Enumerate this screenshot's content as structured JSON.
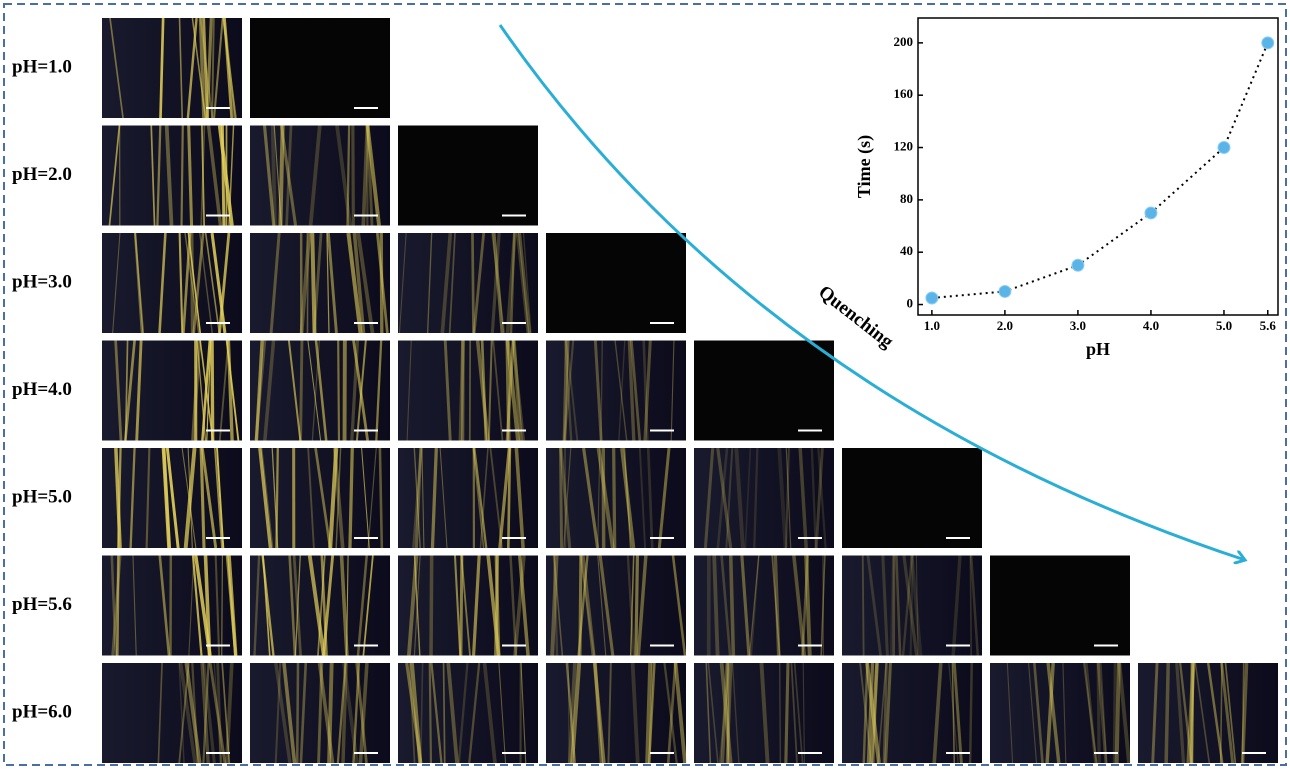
{
  "row_labels": [
    "pH=1.0",
    "pH=2.0",
    "pH=3.0",
    "pH=4.0",
    "pH=5.0",
    "pH=5.6",
    "pH=6.0"
  ],
  "annotation": "Quenching",
  "chart_data": {
    "type": "scatter",
    "xlabel": "pH",
    "ylabel": "Time (s)",
    "x": [
      1.0,
      2.0,
      3.0,
      4.0,
      5.0,
      5.6
    ],
    "values": [
      5,
      10,
      30,
      70,
      120,
      200
    ],
    "color": "#5ab4e8",
    "line_style": "dotted",
    "xlim": [
      0.81,
      5.74
    ],
    "ylim": [
      -8,
      219
    ],
    "xticks": [
      {
        "value": 1,
        "label": "1.0"
      },
      {
        "value": 2,
        "label": "2.0"
      },
      {
        "value": 3,
        "label": "3.0"
      },
      {
        "value": 4,
        "label": "4.0"
      },
      {
        "value": 5,
        "label": "5.0"
      },
      {
        "value": 5.6,
        "label": "5.6"
      }
    ],
    "yticks": [
      0,
      40,
      80,
      120,
      160,
      200
    ]
  }
}
